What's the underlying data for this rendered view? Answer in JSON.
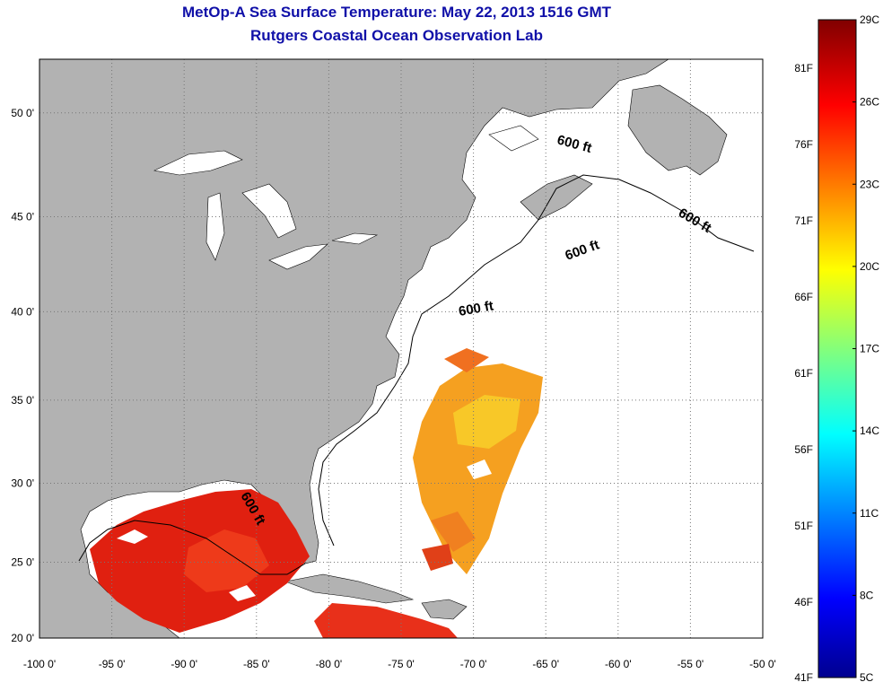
{
  "header": {
    "title": "MetOp-A Sea Surface Temperature:  May 22, 2013 1516 GMT",
    "subtitle": "Rutgers Coastal Ocean Observation Lab"
  },
  "map": {
    "lon_range": [
      -100,
      -50
    ],
    "lat_range": [
      20,
      52.4
    ],
    "lon_ticks": [
      "-100 0'",
      "-95 0'",
      "-90 0'",
      "-85 0'",
      "-80 0'",
      "-75 0'",
      "-70 0'",
      "-65 0'",
      "-60 0'",
      "-55 0'",
      "-50 0'"
    ],
    "lat_ticks": [
      "20 0'",
      "25 0'",
      "30 0'",
      "35 0'",
      "40 0'",
      "45 0'",
      "50 0'"
    ],
    "depth_labels": [
      "600 ft",
      "600 ft",
      "600 ft",
      "600 ft",
      "600 ft"
    ],
    "colors": {
      "land": "#b2b2b2",
      "ocean": "#ffffff",
      "grid": "#777777",
      "contour": "#000000"
    }
  },
  "colorbar": {
    "celsius_labels": [
      "29C",
      "26C",
      "23C",
      "20C",
      "17C",
      "14C",
      "11C",
      "8C",
      "5C"
    ],
    "fahrenheit_labels": [
      "81F",
      "76F",
      "71F",
      "66F",
      "61F",
      "56F",
      "51F",
      "46F",
      "41F"
    ],
    "colormap": "jet",
    "range_c": [
      5,
      29
    ]
  }
}
